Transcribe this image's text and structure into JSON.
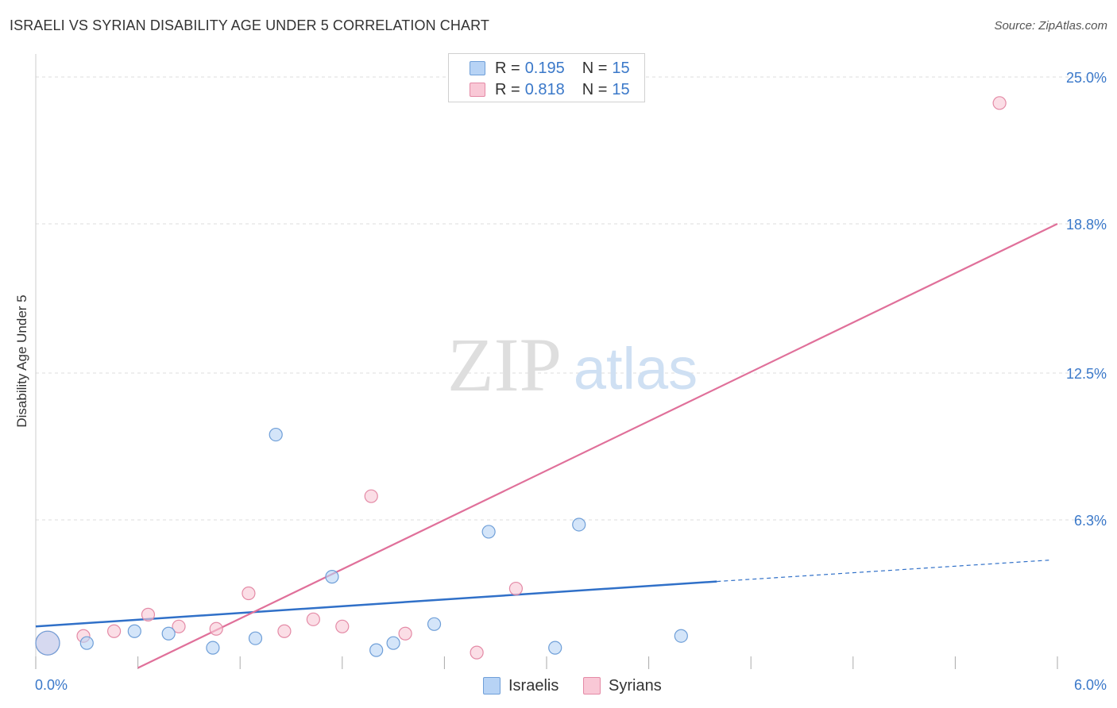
{
  "header": {
    "title": "ISRAELI VS SYRIAN DISABILITY AGE UNDER 5 CORRELATION CHART",
    "source": "Source: ZipAtlas.com"
  },
  "watermark": {
    "zip": "ZIP",
    "atlas": "atlas"
  },
  "legend": {
    "rows": [
      {
        "r_label": "R =",
        "r_value": "0.195",
        "n_label": "N =",
        "n_value": "15"
      },
      {
        "r_label": "R =",
        "r_value": "0.818",
        "n_label": "N =",
        "n_value": "15"
      }
    ]
  },
  "bottom_legend": {
    "israelis": "Israelis",
    "syrians": "Syrians"
  },
  "colors": {
    "israelis_fill": "#b7d3f5",
    "israelis_stroke": "#6f9fd8",
    "israelis_line": "#3070c8",
    "syrians_fill": "#f9c8d6",
    "syrians_stroke": "#e48aa6",
    "syrians_line": "#e0709a",
    "tick_label": "#3a78c9",
    "grid": "#dddddd"
  },
  "chart_data": {
    "type": "scatter",
    "title": "ISRAELI VS SYRIAN DISABILITY AGE UNDER 5 CORRELATION CHART",
    "xlabel": "",
    "ylabel": "Disability Age Under 5",
    "xlim": [
      0,
      6.0
    ],
    "ylim": [
      0,
      25.0
    ],
    "x_tick_labels": [
      "0.0%",
      "6.0%"
    ],
    "y_ticks": [
      6.3,
      12.5,
      18.8,
      25.0
    ],
    "y_tick_labels": [
      "6.3%",
      "12.5%",
      "18.8%",
      "25.0%"
    ],
    "series": [
      {
        "name": "Israelis",
        "r": 0.195,
        "n": 15,
        "points": [
          {
            "x": 0.07,
            "y": 1.1,
            "big": true
          },
          {
            "x": 0.3,
            "y": 1.1
          },
          {
            "x": 0.58,
            "y": 1.6
          },
          {
            "x": 0.78,
            "y": 1.5
          },
          {
            "x": 1.04,
            "y": 0.9
          },
          {
            "x": 1.29,
            "y": 1.3
          },
          {
            "x": 1.41,
            "y": 9.9
          },
          {
            "x": 1.74,
            "y": 3.9
          },
          {
            "x": 2.0,
            "y": 0.8
          },
          {
            "x": 2.1,
            "y": 1.1
          },
          {
            "x": 2.34,
            "y": 1.9
          },
          {
            "x": 2.66,
            "y": 5.8
          },
          {
            "x": 3.05,
            "y": 0.9
          },
          {
            "x": 3.19,
            "y": 6.1
          },
          {
            "x": 3.79,
            "y": 1.4
          }
        ],
        "trend": {
          "x0": 0.0,
          "y0": 1.8,
          "x1": 4.0,
          "y1": 3.7,
          "dash_to_x": 5.95,
          "dash_to_y": 4.6
        }
      },
      {
        "name": "Syrians",
        "r": 0.818,
        "n": 15,
        "points": [
          {
            "x": 0.07,
            "y": 1.1,
            "big": true
          },
          {
            "x": 0.28,
            "y": 1.4
          },
          {
            "x": 0.46,
            "y": 1.6
          },
          {
            "x": 0.66,
            "y": 2.3
          },
          {
            "x": 0.84,
            "y": 1.8
          },
          {
            "x": 1.06,
            "y": 1.7
          },
          {
            "x": 1.25,
            "y": 3.2
          },
          {
            "x": 1.46,
            "y": 1.6
          },
          {
            "x": 1.63,
            "y": 2.1
          },
          {
            "x": 1.8,
            "y": 1.8
          },
          {
            "x": 1.97,
            "y": 7.3
          },
          {
            "x": 2.17,
            "y": 1.5
          },
          {
            "x": 2.59,
            "y": 0.7
          },
          {
            "x": 2.82,
            "y": 3.4
          },
          {
            "x": 5.66,
            "y": 23.9
          }
        ],
        "trend": {
          "x0": 0.6,
          "y0": 0.05,
          "x1": 6.0,
          "y1": 18.8
        }
      }
    ]
  }
}
